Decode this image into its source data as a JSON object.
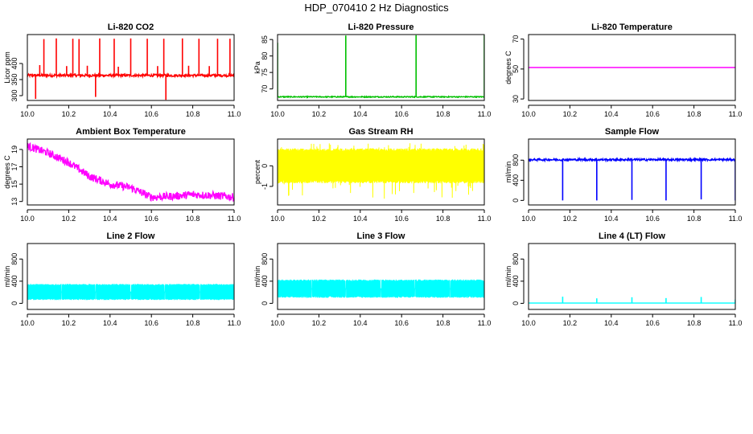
{
  "figure": {
    "title": "HDP_070410  2 Hz Diagnostics"
  },
  "chart_data": [
    {
      "type": "line",
      "title": "Li-820 CO2",
      "ylabel": "Licor ppm",
      "xlabel": "",
      "xlim": [
        10.0,
        11.0
      ],
      "ylim": [
        285,
        490
      ],
      "xticks": [
        "10.0",
        "10.2",
        "10.4",
        "10.6",
        "10.8",
        "11.0"
      ],
      "yticks": [
        {
          "v": 300,
          "label": "300"
        },
        {
          "v": 350,
          "label": "350"
        },
        {
          "v": 400,
          "label": "400"
        }
      ],
      "color": "#ff0000",
      "baseline": 363,
      "noise": 4,
      "spikes": [
        {
          "x": 10.08,
          "v": 476
        },
        {
          "x": 10.14,
          "v": 478
        },
        {
          "x": 10.22,
          "v": 477
        },
        {
          "x": 10.25,
          "v": 476
        },
        {
          "x": 10.33,
          "v": 296
        },
        {
          "x": 10.35,
          "v": 478
        },
        {
          "x": 10.42,
          "v": 477
        },
        {
          "x": 10.5,
          "v": 478
        },
        {
          "x": 10.58,
          "v": 477
        },
        {
          "x": 10.66,
          "v": 477
        },
        {
          "x": 10.67,
          "v": 287
        },
        {
          "x": 10.75,
          "v": 478
        },
        {
          "x": 10.83,
          "v": 477
        },
        {
          "x": 10.92,
          "v": 477
        },
        {
          "x": 10.98,
          "v": 477
        },
        {
          "x": 10.04,
          "v": 290
        },
        {
          "x": 10.06,
          "v": 395
        },
        {
          "x": 10.19,
          "v": 392
        },
        {
          "x": 10.29,
          "v": 393
        },
        {
          "x": 10.44,
          "v": 390
        },
        {
          "x": 10.63,
          "v": 392
        },
        {
          "x": 10.78,
          "v": 393
        },
        {
          "x": 10.88,
          "v": 392
        }
      ]
    },
    {
      "type": "line",
      "title": "Li-820 Pressure",
      "ylabel": "kPa",
      "xlabel": "",
      "xlim": [
        10.0,
        11.0
      ],
      "ylim": [
        66.5,
        86.5
      ],
      "xticks": [
        "10.0",
        "10.2",
        "10.4",
        "10.6",
        "10.8",
        "11.0"
      ],
      "yticks": [
        {
          "v": 70,
          "label": "70"
        },
        {
          "v": 75,
          "label": "75"
        },
        {
          "v": 80,
          "label": "80"
        },
        {
          "v": 85,
          "label": "85"
        }
      ],
      "color": "#00c000",
      "baseline": 67.6,
      "noise": 0.15,
      "spikes": [
        {
          "x": 10.0,
          "v": 84
        },
        {
          "x": 10.33,
          "v": 86.2
        },
        {
          "x": 10.67,
          "v": 86.3
        },
        {
          "x": 11.0,
          "v": 86.3
        }
      ]
    },
    {
      "type": "line",
      "title": "Li-820 Temperature",
      "ylabel": "degrees C",
      "xlabel": "",
      "xlim": [
        10.0,
        11.0
      ],
      "ylim": [
        29,
        73
      ],
      "xticks": [
        "10.0",
        "10.2",
        "10.4",
        "10.6",
        "10.8",
        "11.0"
      ],
      "yticks": [
        {
          "v": 30,
          "label": "30"
        },
        {
          "v": 50,
          "label": "50"
        },
        {
          "v": 70,
          "label": "70"
        }
      ],
      "color": "#ff00ff",
      "baseline": 51,
      "noise": 0,
      "spikes": []
    },
    {
      "type": "line",
      "title": "Ambient Box Temperature",
      "ylabel": "degrees C",
      "xlabel": "",
      "xlim": [
        10.0,
        11.0
      ],
      "ylim": [
        12.6,
        20.2
      ],
      "xticks": [
        "10.0",
        "10.2",
        "10.4",
        "10.6",
        "10.8",
        "11.0"
      ],
      "yticks": [
        {
          "v": 13,
          "label": "13"
        },
        {
          "v": 15,
          "label": "15"
        },
        {
          "v": 17,
          "label": "17"
        },
        {
          "v": 19,
          "label": "19"
        }
      ],
      "color": "#ff00ff",
      "noise": 0.45,
      "trend": [
        [
          10.0,
          19.4
        ],
        [
          10.1,
          18.6
        ],
        [
          10.2,
          17.5
        ],
        [
          10.3,
          15.9
        ],
        [
          10.4,
          15.0
        ],
        [
          10.5,
          14.6
        ],
        [
          10.6,
          13.5
        ],
        [
          10.7,
          13.6
        ],
        [
          10.8,
          13.8
        ],
        [
          10.9,
          13.7
        ],
        [
          11.0,
          13.5
        ]
      ],
      "spikes": []
    },
    {
      "type": "line",
      "title": "Gas Stream RH",
      "ylabel": "percent",
      "xlabel": "",
      "xlim": [
        10.0,
        11.0
      ],
      "ylim": [
        -1.9,
        1.3
      ],
      "xticks": [
        "10.0",
        "10.2",
        "10.4",
        "10.6",
        "10.8",
        "11.0"
      ],
      "yticks": [
        {
          "v": -1,
          "label": "-1"
        },
        {
          "v": 0,
          "label": "0"
        }
      ],
      "color": "#ffff00",
      "band": [
        -0.85,
        0.85
      ],
      "spikes": []
    },
    {
      "type": "line",
      "title": "Sample Flow",
      "ylabel": "ml/min",
      "xlabel": "",
      "xlim": [
        10.0,
        11.0
      ],
      "ylim": [
        -90,
        1220
      ],
      "xticks": [
        "10.0",
        "10.2",
        "10.4",
        "10.6",
        "10.8",
        "11.0"
      ],
      "yticks": [
        {
          "v": 0,
          "label": "0"
        },
        {
          "v": 400,
          "label": "400"
        },
        {
          "v": 800,
          "label": "800"
        }
      ],
      "color": "#0000ff",
      "baseline": 810,
      "noise": 20,
      "spikes": [
        {
          "x": 10.165,
          "v": 0
        },
        {
          "x": 10.33,
          "v": 0
        },
        {
          "x": 10.5,
          "v": 10
        },
        {
          "x": 10.665,
          "v": 0
        },
        {
          "x": 10.835,
          "v": 20
        },
        {
          "x": 11.0,
          "v": 0
        }
      ]
    },
    {
      "type": "line",
      "title": "Line 2 Flow",
      "ylabel": "ml/min",
      "xlabel": "",
      "xlim": [
        10.0,
        11.0
      ],
      "ylim": [
        -110,
        1080
      ],
      "xticks": [
        "10.0",
        "10.2",
        "10.4",
        "10.6",
        "10.8",
        "11.0"
      ],
      "yticks": [
        {
          "v": 0,
          "label": "0"
        },
        {
          "v": 400,
          "label": "400"
        },
        {
          "v": 800,
          "label": "800"
        }
      ],
      "color": "#00ffff",
      "band": [
        60,
        350
      ],
      "gaps": [
        10.165,
        10.33,
        10.5,
        10.665,
        10.835
      ],
      "spikes": []
    },
    {
      "type": "line",
      "title": "Line 3 Flow",
      "ylabel": "ml/min",
      "xlabel": "",
      "xlim": [
        10.0,
        11.0
      ],
      "ylim": [
        -110,
        1080
      ],
      "xticks": [
        "10.0",
        "10.2",
        "10.4",
        "10.6",
        "10.8",
        "11.0"
      ],
      "yticks": [
        {
          "v": 0,
          "label": "0"
        },
        {
          "v": 400,
          "label": "400"
        },
        {
          "v": 800,
          "label": "800"
        }
      ],
      "color": "#00ffff",
      "band": [
        100,
        430
      ],
      "gaps": [
        10.165,
        10.33,
        10.5,
        10.665,
        10.835
      ],
      "spikes": []
    },
    {
      "type": "line",
      "title": "Line 4 (LT) Flow",
      "ylabel": "ml/min",
      "xlabel": "",
      "xlim": [
        10.0,
        11.0
      ],
      "ylim": [
        -110,
        1080
      ],
      "xticks": [
        "10.0",
        "10.2",
        "10.4",
        "10.6",
        "10.8",
        "11.0"
      ],
      "yticks": [
        {
          "v": 0,
          "label": "0"
        },
        {
          "v": 400,
          "label": "400"
        },
        {
          "v": 800,
          "label": "800"
        }
      ],
      "color": "#00ffff",
      "baseline": 5,
      "noise": 0,
      "spikes": [
        {
          "x": 10.165,
          "v": 120
        },
        {
          "x": 10.33,
          "v": 90
        },
        {
          "x": 10.5,
          "v": 110
        },
        {
          "x": 10.665,
          "v": 95
        },
        {
          "x": 10.835,
          "v": 115
        },
        {
          "x": 11.0,
          "v": 70
        }
      ]
    }
  ]
}
